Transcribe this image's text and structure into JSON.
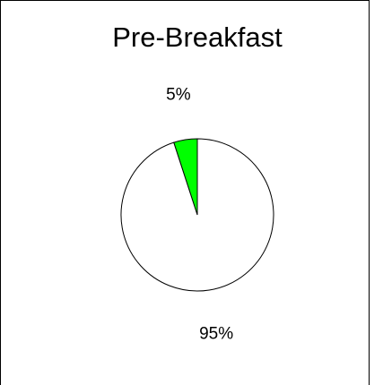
{
  "chart_data": {
    "type": "pie",
    "title": "Pre-Breakfast",
    "values": [
      5,
      95
    ],
    "value_labels": [
      "5%",
      "95%"
    ],
    "colors": [
      "#00ff00",
      "#ffffff"
    ]
  }
}
